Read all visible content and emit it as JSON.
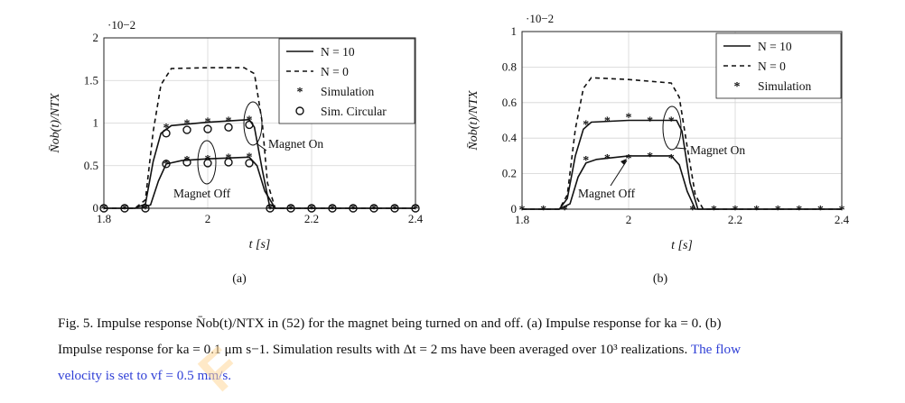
{
  "chart_data": [
    {
      "type": "line",
      "panel_label": "(a)",
      "xlabel": "t [s]",
      "ylabel": "N̄ob(t)/NTX",
      "y_multiplier": "·10−2",
      "xlim": [
        1.8,
        2.4
      ],
      "ylim": [
        0,
        2
      ],
      "xticks": [
        "1.8",
        "2",
        "2.2",
        "2.4"
      ],
      "yticks": [
        "0",
        "0.5",
        "1",
        "1.5",
        "2"
      ],
      "grid": true,
      "legend": "top-right",
      "legend_entries": [
        "N = 10",
        "N = 0",
        "Simulation",
        "Sim. Circular"
      ],
      "annotations": [
        "Magnet On",
        "Magnet Off"
      ],
      "series": [
        {
          "name": "N = 0",
          "style": "dashed",
          "x": [
            1.8,
            1.86,
            1.88,
            1.895,
            1.91,
            1.93,
            2.0,
            2.07,
            2.09,
            2.105,
            2.115,
            2.13,
            2.4
          ],
          "y": [
            0,
            0,
            0.1,
            0.9,
            1.45,
            1.64,
            1.65,
            1.65,
            1.58,
            1.0,
            0.3,
            0,
            0
          ]
        },
        {
          "name": "N = 10 (Magnet On)",
          "style": "solid",
          "x": [
            1.8,
            1.86,
            1.88,
            1.895,
            1.91,
            1.93,
            2.0,
            2.08,
            2.09,
            2.105,
            2.12,
            2.4
          ],
          "y": [
            0,
            0,
            0.05,
            0.55,
            0.88,
            0.97,
            1.01,
            1.04,
            0.95,
            0.45,
            0,
            0
          ]
        },
        {
          "name": "N = 10 (Magnet Off)",
          "style": "solid",
          "x": [
            1.8,
            1.87,
            1.89,
            1.905,
            1.92,
            1.95,
            2.0,
            2.08,
            2.095,
            2.11,
            2.13,
            2.4
          ],
          "y": [
            0,
            0,
            0.04,
            0.32,
            0.52,
            0.56,
            0.58,
            0.6,
            0.5,
            0.2,
            0,
            0
          ]
        },
        {
          "name": "Simulation",
          "marker": "asterisk",
          "x": [
            1.8,
            1.84,
            1.88,
            1.92,
            1.96,
            2.0,
            2.04,
            2.08,
            2.12,
            2.16,
            2.2,
            2.24,
            2.28,
            2.32,
            2.36,
            2.4,
            1.92,
            1.96,
            2.0,
            2.04,
            2.08
          ],
          "y": [
            0,
            0,
            0,
            0.95,
            1.0,
            1.02,
            1.03,
            1.04,
            0,
            0,
            0,
            0,
            0,
            0,
            0,
            0,
            0.53,
            0.57,
            0.58,
            0.6,
            0.61
          ]
        },
        {
          "name": "Sim. Circular",
          "marker": "circle",
          "x": [
            1.8,
            1.84,
            1.88,
            1.92,
            1.96,
            2.0,
            2.04,
            2.08,
            2.12,
            2.16,
            2.2,
            2.24,
            2.28,
            2.32,
            2.36,
            2.4,
            1.92,
            1.96,
            2.0,
            2.04,
            2.08
          ],
          "y": [
            0,
            0,
            0,
            0.88,
            0.92,
            0.93,
            0.95,
            0.98,
            0,
            0,
            0,
            0,
            0,
            0,
            0,
            0,
            0.52,
            0.54,
            0.53,
            0.54,
            0.53
          ]
        }
      ]
    },
    {
      "type": "line",
      "panel_label": "(b)",
      "xlabel": "t [s]",
      "ylabel": "N̄ob(t)/NTX",
      "y_multiplier": "·10−2",
      "xlim": [
        1.8,
        2.4
      ],
      "ylim": [
        0,
        1
      ],
      "xticks": [
        "1.8",
        "2",
        "2.2",
        "2.4"
      ],
      "yticks": [
        "0",
        "0.2",
        "0.4",
        "0.6",
        "0.8",
        "1"
      ],
      "grid": true,
      "legend": "top-right",
      "legend_entries": [
        "N = 10",
        "N = 0",
        "Simulation"
      ],
      "annotations": [
        "Magnet On",
        "Magnet Off"
      ],
      "series": [
        {
          "name": "N = 0",
          "style": "dashed",
          "x": [
            1.8,
            1.87,
            1.885,
            1.9,
            1.915,
            1.93,
            2.0,
            2.08,
            2.095,
            2.11,
            2.125,
            2.14,
            2.4
          ],
          "y": [
            0,
            0,
            0.08,
            0.45,
            0.68,
            0.74,
            0.73,
            0.71,
            0.63,
            0.35,
            0.08,
            0,
            0
          ]
        },
        {
          "name": "N = 10 (Magnet On)",
          "style": "solid",
          "x": [
            1.8,
            1.87,
            1.885,
            1.9,
            1.915,
            1.93,
            2.0,
            2.09,
            2.1,
            2.115,
            2.13,
            2.4
          ],
          "y": [
            0,
            0,
            0.06,
            0.3,
            0.45,
            0.49,
            0.5,
            0.5,
            0.44,
            0.15,
            0,
            0
          ]
        },
        {
          "name": "N = 10 (Magnet Off)",
          "style": "solid",
          "x": [
            1.8,
            1.87,
            1.89,
            1.905,
            1.92,
            1.94,
            2.0,
            2.08,
            2.095,
            2.11,
            2.125,
            2.4
          ],
          "y": [
            0,
            0,
            0.03,
            0.18,
            0.26,
            0.28,
            0.3,
            0.3,
            0.25,
            0.1,
            0,
            0
          ]
        },
        {
          "name": "Simulation",
          "marker": "asterisk",
          "x": [
            1.8,
            1.84,
            1.88,
            1.92,
            1.96,
            2.0,
            2.04,
            2.08,
            2.12,
            2.16,
            2.2,
            2.24,
            2.28,
            2.32,
            2.36,
            2.4,
            1.92,
            1.96,
            2.0,
            2.04,
            2.08
          ],
          "y": [
            0,
            0,
            0,
            0.48,
            0.5,
            0.52,
            0.5,
            0.5,
            0,
            0,
            0,
            0,
            0,
            0,
            0,
            0,
            0.28,
            0.29,
            0.29,
            0.3,
            0.29
          ]
        }
      ]
    }
  ],
  "caption": {
    "fig_label": "Fig. 5.",
    "line1": "Impulse response N̄ob(t)/NTX in (52) for the magnet being turned on and off. (a) Impulse response for ka = 0. (b)",
    "line2": "Impulse response for ka = 0.1 μm s−1. Simulation results with Δt = 2 ms have been averaged over 10³ realizations.",
    "line2_highlight": "The flow",
    "line3_highlight": "velocity is set to vf = 0.5 mm/s."
  },
  "watermark": "F"
}
